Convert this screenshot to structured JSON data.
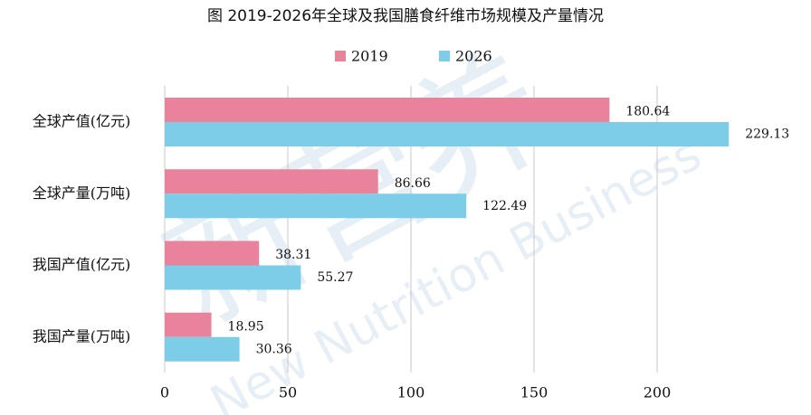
{
  "chart_data": {
    "type": "hbar",
    "title": "图  2019-2026年全球及我国膳食纤维市场规模及产量情况",
    "watermark": [
      "新营养",
      "New Nutrition Business"
    ],
    "categories": [
      "全球产值(亿元)",
      "全球产量(万吨)",
      "我国产值(亿元)",
      "我国产量(万吨)"
    ],
    "series": [
      {
        "name": "2019",
        "color": "#e8839b",
        "values": [
          180.64,
          86.66,
          38.31,
          18.95
        ]
      },
      {
        "name": "2026",
        "color": "#7dcde8",
        "values": [
          229.13,
          122.49,
          55.27,
          30.36
        ]
      }
    ],
    "xlim": [
      0,
      250
    ],
    "xticks": [
      0,
      50,
      100,
      150,
      200
    ],
    "grid": true,
    "legend": "top"
  }
}
